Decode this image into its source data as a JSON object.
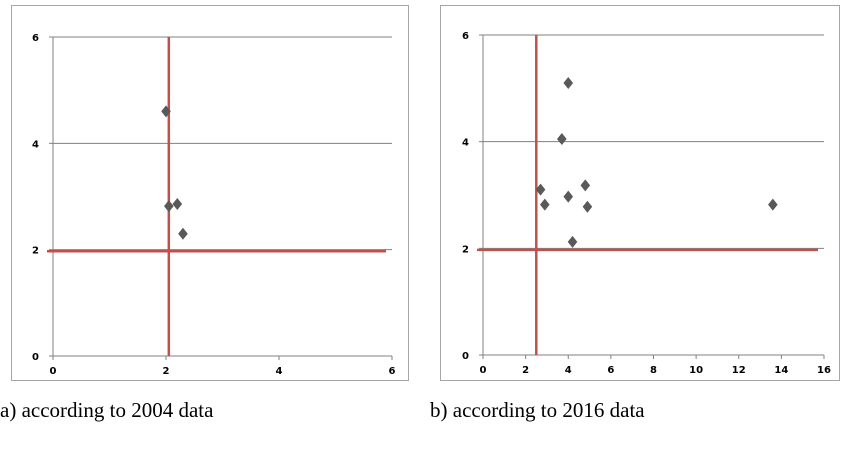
{
  "chart_data": [
    {
      "type": "scatter",
      "caption": "a) according to 2004 data",
      "xlim": [
        0,
        6
      ],
      "ylim": [
        0,
        6
      ],
      "xticks": [
        "0",
        "2",
        "4",
        "6"
      ],
      "yticks": [
        "0",
        "2",
        "4",
        "6"
      ],
      "grid": "horizontal",
      "marker": "diamond",
      "colors": {
        "marker": "#595959",
        "reference": "#c0504d",
        "grid": "#808080",
        "axis": "#808080"
      },
      "points": [
        {
          "x": 2.0,
          "y": 4.6
        },
        {
          "x": 2.05,
          "y": 2.82
        },
        {
          "x": 2.2,
          "y": 2.86
        },
        {
          "x": 2.3,
          "y": 2.3
        }
      ],
      "reference_lines": {
        "x": 2.05,
        "y": 1.97
      }
    },
    {
      "type": "scatter",
      "caption": "b) according to 2016 data",
      "xlim": [
        0,
        16
      ],
      "ylim": [
        0,
        6
      ],
      "xticks": [
        "0",
        "2",
        "4",
        "6",
        "8",
        "10",
        "12",
        "14",
        "16"
      ],
      "yticks": [
        "0",
        "2",
        "4",
        "6"
      ],
      "grid": "horizontal",
      "marker": "diamond",
      "colors": {
        "marker": "#595959",
        "reference": "#c0504d",
        "grid": "#808080",
        "axis": "#808080"
      },
      "points": [
        {
          "x": 4.0,
          "y": 5.1
        },
        {
          "x": 3.7,
          "y": 4.05
        },
        {
          "x": 2.7,
          "y": 3.1
        },
        {
          "x": 2.9,
          "y": 2.82
        },
        {
          "x": 4.0,
          "y": 2.97
        },
        {
          "x": 4.8,
          "y": 3.18
        },
        {
          "x": 4.9,
          "y": 2.78
        },
        {
          "x": 4.2,
          "y": 2.12
        },
        {
          "x": 13.6,
          "y": 2.82
        }
      ],
      "reference_lines": {
        "x": 2.5,
        "y": 1.97
      }
    }
  ]
}
